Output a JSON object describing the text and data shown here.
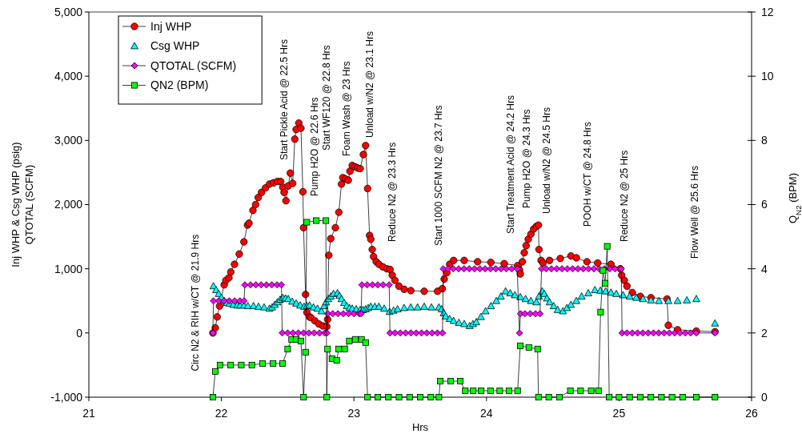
{
  "chart_data": {
    "type": "line",
    "xlabel": "Hrs",
    "ylabel": "Inj WHP & Csg WHP (psig)\nQTOTAL (SCFM)",
    "y2label": "Q$_{N2}$ (BPM)",
    "xlim": [
      21,
      26
    ],
    "xticks": [
      21,
      22,
      23,
      24,
      25,
      26
    ],
    "ylim": [
      -1000,
      5000
    ],
    "yticks": [
      {
        "value": -1000,
        "label": "-1,000"
      },
      0,
      {
        "value": 1000,
        "label": "1,000"
      },
      {
        "value": 2000,
        "label": "2,000"
      },
      {
        "value": 3000,
        "label": "3,000"
      },
      {
        "value": 4000,
        "label": "4,000"
      },
      {
        "value": 5000,
        "label": "5,000"
      }
    ],
    "y2lim": [
      0,
      12
    ],
    "y2ticks": [
      0,
      2,
      4,
      6,
      8,
      10,
      12
    ],
    "legend": "top left",
    "series": [
      {
        "name": "Inj WHP",
        "marker": "circle",
        "color": "#ff0000",
        "x": [
          21.936,
          21.954,
          21.968,
          21.986,
          22.021,
          22.034,
          22.057,
          22.071,
          22.099,
          22.135,
          22.17,
          22.197,
          22.208,
          22.238,
          22.258,
          22.278,
          22.303,
          22.333,
          22.363,
          22.393,
          22.423,
          22.447,
          22.463,
          22.473,
          22.487,
          22.504,
          22.52,
          22.538,
          22.554,
          22.564,
          22.584,
          22.6,
          22.615,
          22.62,
          22.635,
          22.645,
          22.665,
          22.675,
          22.705,
          22.735,
          22.765,
          22.795,
          22.801,
          22.81,
          22.825,
          22.86,
          22.886,
          22.906,
          22.916,
          22.937,
          22.957,
          22.97,
          22.987,
          23.007,
          23.027,
          23.047,
          23.071,
          23.088,
          23.103,
          23.118,
          23.127,
          23.138,
          23.148,
          23.168,
          23.188,
          23.218,
          23.248,
          23.272,
          23.289,
          23.309,
          23.339,
          23.379,
          23.429,
          23.53,
          23.631,
          23.667,
          23.681,
          23.701,
          23.722,
          23.752,
          23.832,
          23.933,
          24.033,
          24.134,
          24.235,
          24.249,
          24.255,
          24.271,
          24.285,
          24.299,
          24.315,
          24.335,
          24.356,
          24.376,
          24.392,
          24.396,
          24.412,
          24.426,
          24.476,
          24.557,
          24.637,
          24.678,
          24.758,
          24.839,
          24.939,
          25.01,
          25.02,
          25.04,
          25.06,
          25.1,
          25.161,
          25.241,
          25.362,
          25.372,
          25.442,
          25.583,
          25.724
        ],
        "values": [
          0,
          80,
          250,
          420,
          750,
          820,
          860,
          950,
          1070,
          1230,
          1420,
          1680,
          1710,
          1910,
          2000,
          2110,
          2190,
          2260,
          2320,
          2340,
          2360,
          2360,
          2270,
          2190,
          2060,
          2290,
          2490,
          2330,
          3020,
          3170,
          3270,
          3190,
          2200,
          1640,
          600,
          320,
          250,
          240,
          190,
          140,
          110,
          100,
          210,
          1210,
          1470,
          1640,
          1880,
          2320,
          2420,
          2400,
          2380,
          2520,
          2610,
          2590,
          2570,
          2560,
          2780,
          2920,
          2250,
          1520,
          1460,
          1300,
          1190,
          1110,
          1070,
          1030,
          1000,
          990,
          900,
          820,
          730,
          680,
          660,
          650,
          650,
          690,
          840,
          940,
          1070,
          1130,
          1130,
          1110,
          1100,
          1080,
          1050,
          980,
          920,
          1110,
          1250,
          1360,
          1460,
          1540,
          1620,
          1660,
          1680,
          1300,
          1130,
          1090,
          1130,
          1160,
          1200,
          1170,
          1110,
          1090,
          1070,
          1000,
          900,
          820,
          730,
          630,
          570,
          550,
          530,
          120,
          50,
          30,
          20
        ]
      },
      {
        "name": "Csg WHP",
        "type": "scatter",
        "marker": "triangle",
        "color": "#00ffff",
        "x": [
          21.94,
          21.96,
          21.98,
          22.0,
          22.021,
          22.041,
          22.061,
          22.09,
          22.12,
          22.141,
          22.17,
          22.2,
          22.242,
          22.28,
          22.322,
          22.363,
          22.383,
          22.403,
          22.423,
          22.443,
          22.463,
          22.484,
          22.504,
          22.534,
          22.564,
          22.594,
          22.624,
          22.645,
          22.665,
          22.695,
          22.725,
          22.755,
          22.775,
          22.79,
          22.806,
          22.826,
          22.846,
          22.876,
          22.891,
          22.906,
          22.926,
          22.946,
          22.967,
          22.987,
          23.017,
          23.047,
          23.068,
          23.088,
          23.108,
          23.127,
          23.158,
          23.188,
          23.228,
          23.269,
          23.299,
          23.329,
          23.379,
          23.429,
          23.48,
          23.53,
          23.585,
          23.641,
          23.662,
          23.677,
          23.692,
          23.722,
          23.752,
          23.792,
          23.832,
          23.873,
          23.898,
          23.923,
          23.958,
          23.993,
          24.034,
          24.074,
          24.109,
          24.144,
          24.179,
          24.214,
          24.255,
          24.295,
          24.335,
          24.376,
          24.396,
          24.42,
          24.436,
          24.456,
          24.476,
          24.507,
          24.537,
          24.577,
          24.607,
          24.637,
          24.678,
          24.718,
          24.768,
          24.818,
          24.859,
          24.899,
          24.939,
          24.979,
          25.03,
          25.08,
          25.13,
          25.181,
          25.241,
          25.301,
          25.372,
          25.442,
          25.512,
          25.583,
          25.724
        ],
        "values": [
          730,
          670,
          610,
          550,
          500,
          470,
          460,
          440,
          430,
          430,
          430,
          420,
          420,
          410,
          400,
          380,
          400,
          440,
          480,
          520,
          550,
          540,
          530,
          490,
          460,
          430,
          410,
          420,
          430,
          400,
          380,
          340,
          420,
          480,
          530,
          570,
          610,
          620,
          580,
          530,
          470,
          420,
          390,
          380,
          370,
          360,
          360,
          370,
          390,
          410,
          410,
          410,
          380,
          330,
          350,
          370,
          390,
          400,
          400,
          410,
          400,
          400,
          370,
          310,
          260,
          220,
          190,
          160,
          140,
          110,
          140,
          170,
          250,
          340,
          420,
          500,
          570,
          650,
          620,
          590,
          560,
          530,
          500,
          480,
          570,
          650,
          610,
          540,
          480,
          420,
          360,
          340,
          390,
          440,
          500,
          570,
          620,
          670,
          660,
          650,
          630,
          610,
          590,
          570,
          550,
          530,
          510,
          500,
          500,
          500,
          510,
          530,
          150
        ]
      },
      {
        "name": "QTOTAL (SCFM)",
        "marker": "diamond",
        "color": "#ff00ff",
        "x": [
          21.936,
          21.94,
          21.98,
          22.02,
          22.06,
          22.1,
          22.14,
          22.171,
          22.177,
          22.22,
          22.26,
          22.3,
          22.34,
          22.38,
          22.42,
          22.453,
          22.459,
          22.5,
          22.54,
          22.58,
          22.62,
          22.66,
          22.7,
          22.74,
          22.78,
          22.797,
          22.803,
          22.84,
          22.88,
          22.92,
          22.96,
          23.0,
          23.04,
          23.054,
          23.06,
          23.1,
          23.14,
          23.18,
          23.22,
          23.266,
          23.272,
          23.31,
          23.35,
          23.39,
          23.43,
          23.47,
          23.51,
          23.55,
          23.59,
          23.63,
          23.668,
          23.674,
          23.71,
          23.75,
          23.79,
          23.83,
          23.87,
          23.91,
          23.95,
          23.99,
          24.03,
          24.07,
          24.11,
          24.15,
          24.19,
          24.232,
          24.249,
          24.257,
          24.29,
          24.33,
          24.37,
          24.404,
          24.416,
          24.45,
          24.49,
          24.53,
          24.57,
          24.61,
          24.65,
          24.69,
          24.73,
          24.77,
          24.81,
          24.85,
          24.89,
          24.93,
          24.97,
          25.017,
          25.023,
          25.06,
          25.1,
          25.14,
          25.18,
          25.22,
          25.26,
          25.3,
          25.34,
          25.38,
          25.42,
          25.46,
          25.5,
          25.54,
          25.583,
          25.724
        ],
        "values": [
          0,
          500,
          500,
          500,
          500,
          500,
          500,
          500,
          750,
          750,
          750,
          750,
          750,
          750,
          750,
          750,
          0,
          0,
          0,
          0,
          0,
          0,
          0,
          0,
          0,
          0,
          300,
          300,
          300,
          300,
          300,
          300,
          300,
          300,
          750,
          750,
          750,
          750,
          750,
          750,
          0,
          0,
          0,
          0,
          0,
          0,
          0,
          0,
          0,
          0,
          0,
          1000,
          1000,
          1000,
          1000,
          1000,
          1000,
          1000,
          1000,
          1000,
          1000,
          1000,
          1000,
          1000,
          1000,
          1000,
          0,
          300,
          300,
          300,
          300,
          300,
          1000,
          1000,
          1000,
          1000,
          1000,
          1000,
          1000,
          1000,
          1000,
          1000,
          1000,
          1000,
          1000,
          1000,
          1000,
          1000,
          0,
          0,
          0,
          0,
          0,
          0,
          0,
          0,
          0,
          0,
          0,
          0,
          0,
          0,
          0,
          0
        ]
      },
      {
        "name": "QN2 (BPM)",
        "marker": "square",
        "color": "#00ff00",
        "axis": "y2",
        "x": [
          21.936,
          21.954,
          21.99,
          22.07,
          22.15,
          22.23,
          22.31,
          22.39,
          22.462,
          22.5,
          22.53,
          22.565,
          22.6,
          22.62,
          22.635,
          22.644,
          22.716,
          22.788,
          22.795,
          22.801,
          22.835,
          22.87,
          22.885,
          22.93,
          22.965,
          23.01,
          23.057,
          23.088,
          23.103,
          23.18,
          23.26,
          23.34,
          23.42,
          23.5,
          23.58,
          23.641,
          23.651,
          23.73,
          23.802,
          23.84,
          23.9,
          23.96,
          24.03,
          24.1,
          24.17,
          24.235,
          24.255,
          24.32,
          24.386,
          24.392,
          24.47,
          24.55,
          24.633,
          24.71,
          24.79,
          24.845,
          24.861,
          24.879,
          24.895,
          24.911,
          24.926,
          25.0,
          25.08,
          25.16,
          25.24,
          25.32,
          25.4,
          25.48,
          25.583,
          25.724
        ],
        "values": [
          0,
          0.8,
          1.0,
          1.0,
          1.0,
          1.0,
          1.05,
          1.05,
          1.05,
          1.5,
          1.8,
          1.8,
          1.75,
          0,
          1.4,
          5.45,
          5.5,
          5.5,
          0,
          1.5,
          1.2,
          1.15,
          1.5,
          1.5,
          1.75,
          1.8,
          1.8,
          1.7,
          0,
          0,
          0,
          0,
          0,
          0,
          0,
          0,
          0.5,
          0.5,
          0.5,
          0.2,
          0.2,
          0.2,
          0.2,
          0.2,
          0.2,
          0.2,
          1.6,
          1.55,
          1.5,
          0,
          0,
          0,
          0.2,
          0.2,
          0.2,
          0.2,
          2.65,
          3.95,
          3.55,
          4.7,
          0,
          0,
          0,
          0,
          0,
          0,
          0,
          0,
          0,
          0
        ]
      }
    ],
    "annotations": [
      "Circ N2 & RIH w/CT @ 21.9 Hrs",
      "Start Pickle Acid @ 22.5 Hrs",
      "Pump H2O @ 22.6 Hrs",
      "Start WF120 @ 22.8 Hrs",
      "Foam Wash @ 23 Hrs",
      "Unload w/N2 @ 23.1 Hrs",
      "Reduce N2 @ 23.3 Hrs",
      "Start 1000 SCFM N2 @ 23.7 Hrs",
      "Start Treatment Acid @ 24.2 Hrs",
      "Pump H2O @ 24.3 Hrs",
      "Unload w/N2 @ 24.5 Hrs",
      "POOH w/CT @ 24.8 Hrs",
      "Reduce N2 @ 25 Hrs",
      "Flow Well @ 25.6 Hrs"
    ]
  }
}
